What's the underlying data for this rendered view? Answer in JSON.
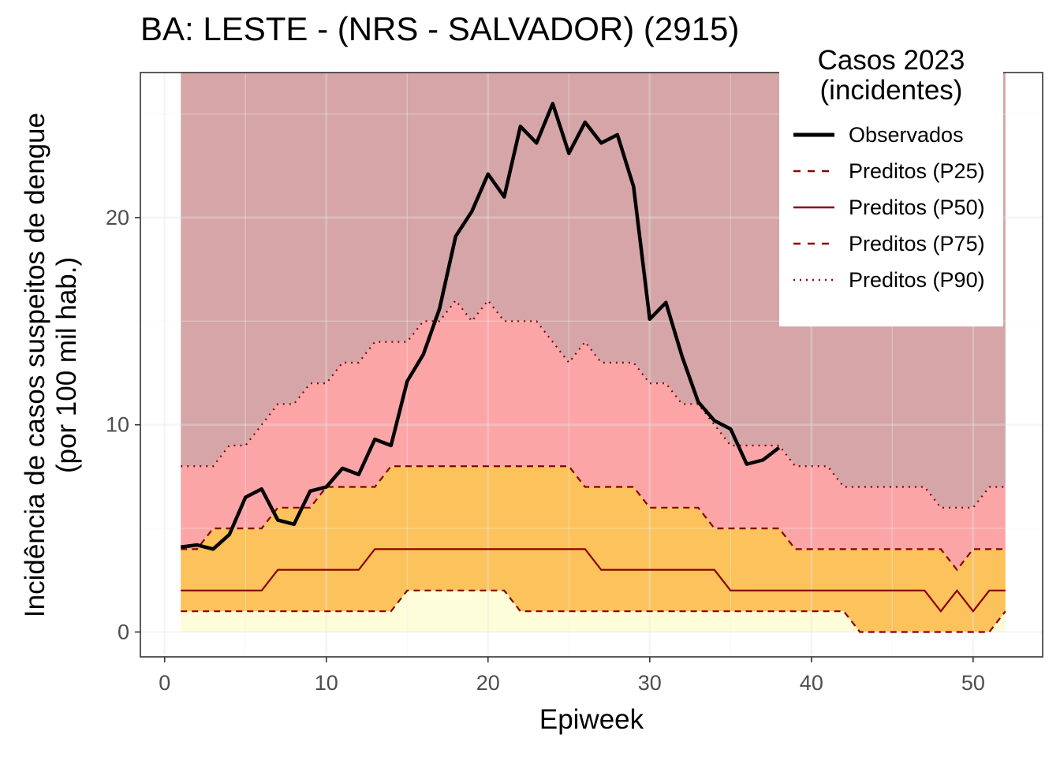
{
  "title": "BA: LESTE - (NRS - SALVADOR) (2915)",
  "colors": {
    "p90_above": "#d5a5a7",
    "p75_p90": "#fca5a7",
    "p25_p75": "#fcc25c",
    "below_p25": "#fefdd9",
    "line_pred": "#8b0000",
    "line_obs": "#000000",
    "grid_major": "#e6e6e6",
    "grid_minor": "#f2f2f2"
  },
  "legend": {
    "title_line1": "Casos 2023",
    "title_line2": "(incidentes)",
    "items": [
      {
        "label": "Observados",
        "style": "solid-thick",
        "color": "#000000"
      },
      {
        "label": "Preditos (P25)",
        "style": "dashed",
        "color": "#8b0000"
      },
      {
        "label": "Preditos (P50)",
        "style": "solid",
        "color": "#8b0000"
      },
      {
        "label": "Preditos (P75)",
        "style": "dashed",
        "color": "#8b0000"
      },
      {
        "label": "Preditos (P90)",
        "style": "dotted",
        "color": "#8b0000"
      }
    ]
  },
  "chart_data": {
    "type": "line",
    "title": "BA: LESTE - (NRS - SALVADOR) (2915)",
    "xlabel": "Epiweek",
    "ylabel_line1": "Incidência de casos suspeitos de dengue",
    "ylabel_line2": "(por 100 mil hab.)",
    "xlim": [
      -1.5,
      54.3
    ],
    "ylim": [
      -1.2,
      27.0
    ],
    "xticks": [
      0,
      10,
      20,
      30,
      40,
      50
    ],
    "xtick_labels": [
      "0",
      "10",
      "20",
      "30",
      "40",
      "50"
    ],
    "yticks": [
      0,
      10,
      20
    ],
    "ytick_labels": [
      "0",
      "10",
      "20"
    ],
    "grid": true,
    "legend_position": "top-right",
    "x": [
      1,
      2,
      3,
      4,
      5,
      6,
      7,
      8,
      9,
      10,
      11,
      12,
      13,
      14,
      15,
      16,
      17,
      18,
      19,
      20,
      21,
      22,
      23,
      24,
      25,
      26,
      27,
      28,
      29,
      30,
      31,
      32,
      33,
      34,
      35,
      36,
      37,
      38,
      39,
      40,
      41,
      42,
      43,
      44,
      45,
      46,
      47,
      48,
      49,
      50,
      51,
      52
    ],
    "series": [
      {
        "name": "Preditos (P25)",
        "values": [
          1,
          1,
          1,
          1,
          1,
          1,
          1,
          1,
          1,
          1,
          1,
          1,
          1,
          1,
          2,
          2,
          2,
          2,
          2,
          2,
          2,
          1,
          1,
          1,
          1,
          1,
          1,
          1,
          1,
          1,
          1,
          1,
          1,
          1,
          1,
          1,
          1,
          1,
          1,
          1,
          1,
          1,
          0,
          0,
          0,
          0,
          0,
          0,
          0,
          0,
          0,
          1
        ]
      },
      {
        "name": "Preditos (P50)",
        "values": [
          2,
          2,
          2,
          2,
          2,
          2,
          3,
          3,
          3,
          3,
          3,
          3,
          4,
          4,
          4,
          4,
          4,
          4,
          4,
          4,
          4,
          4,
          4,
          4,
          4,
          4,
          3,
          3,
          3,
          3,
          3,
          3,
          3,
          3,
          2,
          2,
          2,
          2,
          2,
          2,
          2,
          2,
          2,
          2,
          2,
          2,
          2,
          1,
          2,
          1,
          2,
          2
        ]
      },
      {
        "name": "Preditos (P75)",
        "values": [
          4,
          4,
          5,
          5,
          5,
          5,
          6,
          6,
          6,
          7,
          7,
          7,
          7,
          8,
          8,
          8,
          8,
          8,
          8,
          8,
          8,
          8,
          8,
          8,
          8,
          7,
          7,
          7,
          7,
          6,
          6,
          6,
          6,
          5,
          5,
          5,
          5,
          5,
          4,
          4,
          4,
          4,
          4,
          4,
          4,
          4,
          4,
          4,
          3,
          4,
          4,
          4
        ]
      },
      {
        "name": "Preditos (P90)",
        "values": [
          8,
          8,
          8,
          9,
          9,
          10,
          11,
          11,
          12,
          12,
          13,
          13,
          14,
          14,
          14,
          15,
          15,
          16,
          15,
          16,
          15,
          15,
          15,
          14,
          13,
          14,
          13,
          13,
          13,
          12,
          12,
          11,
          11,
          10,
          9,
          9,
          9,
          9,
          8,
          8,
          8,
          7,
          7,
          7,
          7,
          7,
          7,
          6,
          6,
          6,
          7,
          7
        ]
      },
      {
        "name": "Observados",
        "values": [
          4.1,
          4.2,
          4.0,
          4.7,
          6.5,
          6.9,
          5.4,
          5.2,
          6.8,
          7.0,
          7.9,
          7.6,
          9.3,
          9.0,
          12.1,
          13.4,
          15.6,
          19.1,
          20.3,
          22.1,
          21.0,
          24.4,
          23.6,
          25.5,
          23.1,
          24.6,
          23.6,
          24.0,
          21.5,
          15.1,
          15.9,
          13.3,
          11.1,
          10.2,
          9.8,
          8.1,
          8.3,
          8.9,
          null,
          null,
          null,
          null,
          null,
          null,
          null,
          null,
          null,
          null,
          null,
          null,
          null,
          null
        ]
      }
    ],
    "top_band_value": 27
  }
}
